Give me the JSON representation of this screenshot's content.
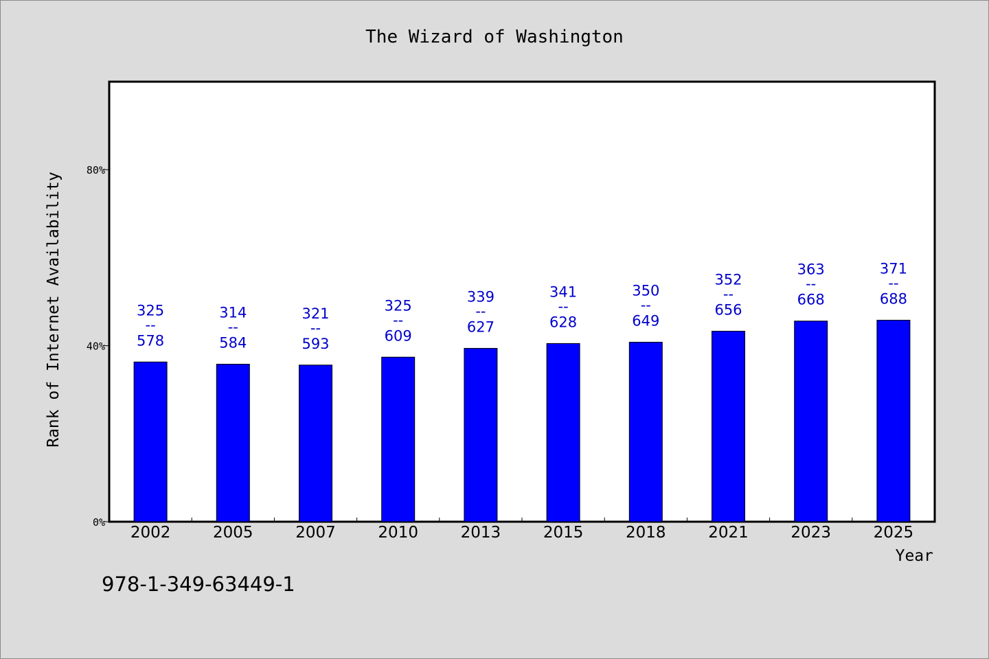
{
  "chart_data": {
    "type": "bar",
    "title": "The Wizard of Washington",
    "xlabel": "Year",
    "ylabel": "Rank of Internet Availability",
    "categories": [
      "2002",
      "2005",
      "2007",
      "2010",
      "2013",
      "2015",
      "2018",
      "2021",
      "2023",
      "2025"
    ],
    "values": [
      36.3,
      35.8,
      35.6,
      37.4,
      39.4,
      40.5,
      40.8,
      43.3,
      45.6,
      45.8
    ],
    "data_labels": [
      {
        "top": "325",
        "sep": "--",
        "bottom": "578"
      },
      {
        "top": "314",
        "sep": "--",
        "bottom": "584"
      },
      {
        "top": "321",
        "sep": "--",
        "bottom": "593"
      },
      {
        "top": "325",
        "sep": "--",
        "bottom": "609"
      },
      {
        "top": "339",
        "sep": "--",
        "bottom": "627"
      },
      {
        "top": "341",
        "sep": "--",
        "bottom": "628"
      },
      {
        "top": "350",
        "sep": "--",
        "bottom": "649"
      },
      {
        "top": "352",
        "sep": "--",
        "bottom": "656"
      },
      {
        "top": "363",
        "sep": "--",
        "bottom": "668"
      },
      {
        "top": "371",
        "sep": "--",
        "bottom": "688"
      }
    ],
    "yticks": [
      {
        "value": 0,
        "label": "0%"
      },
      {
        "value": 40,
        "label": "40%"
      },
      {
        "value": 80,
        "label": "80%"
      }
    ],
    "ylim": [
      0,
      100
    ],
    "grid": false,
    "colors": {
      "bar": "#0000ff",
      "label": "#0000cc",
      "background": "#dcdcdc",
      "plot_background": "#ffffff"
    }
  },
  "footer": {
    "isbn": "978-1-349-63449-1"
  }
}
